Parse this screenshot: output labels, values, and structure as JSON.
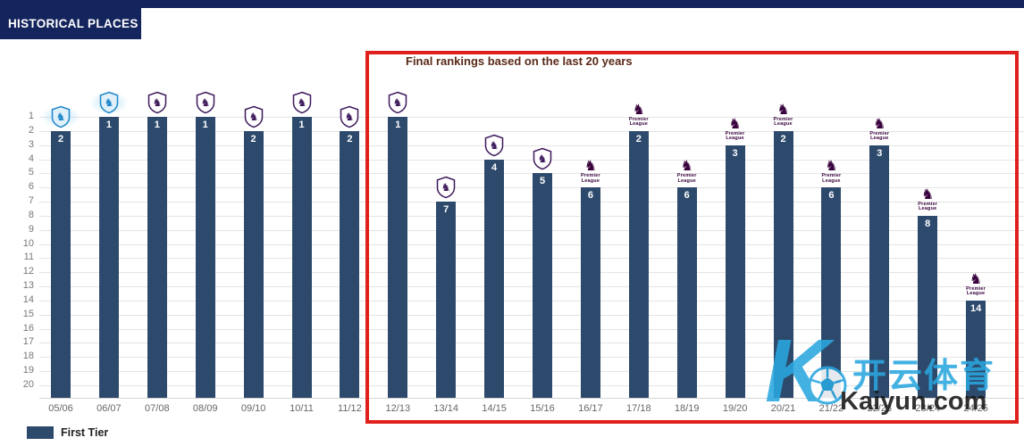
{
  "header": {
    "title": "HISTORICAL PLACES"
  },
  "legend": {
    "label": "First Tier",
    "color": "#2d4a6c"
  },
  "watermark": {
    "letter": "K",
    "brand_cn": "开云体育",
    "brand_url": "Kaiyun.com",
    "color": "#2aa7df",
    "ball_icon": "soccer-ball"
  },
  "chart_data": {
    "type": "bar",
    "title": "",
    "annotation": "Final rankings based on the last 20 years",
    "categories": [
      "05/06",
      "06/07",
      "07/08",
      "08/09",
      "09/10",
      "10/11",
      "11/12",
      "12/13",
      "13/14",
      "14/15",
      "15/16",
      "16/17",
      "17/18",
      "18/19",
      "19/20",
      "20/21",
      "21/22",
      "22/23",
      "23/24",
      "24/25"
    ],
    "values": [
      2,
      1,
      1,
      1,
      2,
      1,
      2,
      1,
      7,
      4,
      5,
      6,
      2,
      6,
      3,
      2,
      6,
      3,
      8,
      14
    ],
    "series_name": "First Tier",
    "bar_color": "#2d4a6c",
    "y_axis": {
      "min": 1,
      "max": 20,
      "inverted": true,
      "ticks": [
        1,
        2,
        3,
        4,
        5,
        6,
        7,
        8,
        9,
        10,
        11,
        12,
        13,
        14,
        15,
        16,
        17,
        18,
        19,
        20
      ]
    },
    "logos": [
      "classic-blue",
      "classic-blue",
      "classic",
      "classic",
      "classic",
      "classic",
      "classic",
      "classic",
      "classic",
      "classic",
      "classic",
      "modern",
      "modern",
      "modern",
      "modern",
      "modern",
      "modern",
      "modern",
      "modern",
      "modern"
    ],
    "logo_colors": {
      "classic": "#3d195b",
      "classic_blue": "#1f86c9",
      "modern": "#38003c"
    },
    "highlight_box": {
      "seasons": "12/13–24/25",
      "color": "#e0201c"
    },
    "grid": true,
    "legend_position": "bottom-left"
  }
}
